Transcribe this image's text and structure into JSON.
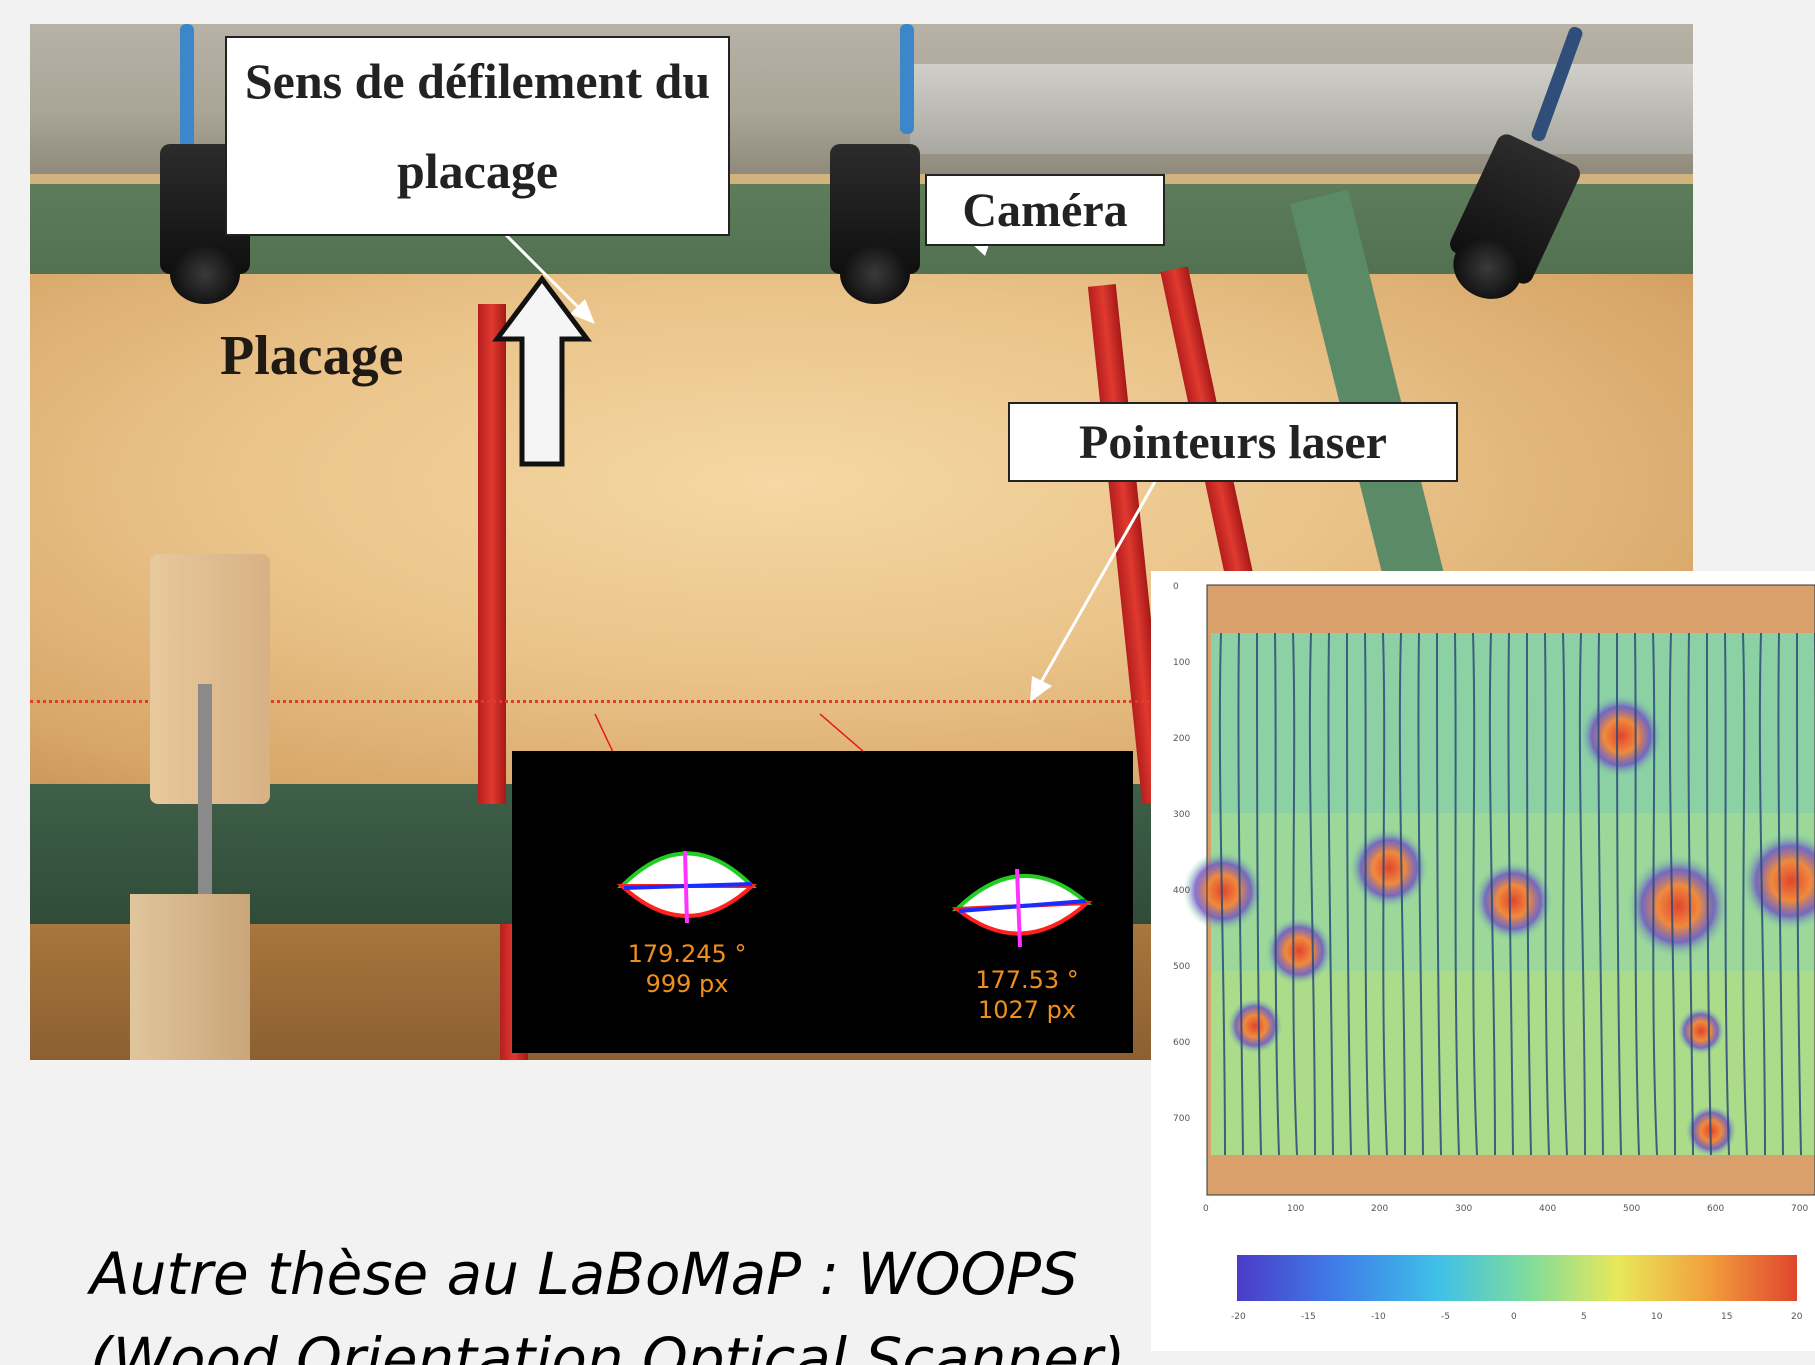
{
  "photo": {
    "label_sens_line1": "Sens de défilement du",
    "label_sens_line2": "placage",
    "label_camera": "Caméra",
    "label_laser": "Pointeurs laser",
    "label_placage": "Placage"
  },
  "inset": {
    "left_angle": "179.245 °",
    "left_px": "999 px",
    "right_angle": "177.53 °",
    "right_px": "1027 px",
    "colors": {
      "contour_top": "#22cc22",
      "contour_bottom": "#ff2020",
      "axis_major": "#1a2cff",
      "axis_minor": "#ff33ff",
      "text": "#f0901c"
    }
  },
  "heatmap": {
    "y_ticks": [
      "0",
      "100",
      "200",
      "300",
      "400",
      "500",
      "600",
      "700"
    ],
    "x_ticks": [
      "0",
      "100",
      "200",
      "300",
      "400",
      "500",
      "600",
      "700"
    ],
    "colorbar_ticks": [
      "-20",
      "-15",
      "-10",
      "-5",
      "0",
      "5",
      "10",
      "15",
      "20"
    ],
    "colormap": [
      "#4b3cc8",
      "#3f7ee8",
      "#3fc1e8",
      "#7fdc9c",
      "#e8e85a",
      "#f2a03c",
      "#e0452e"
    ]
  },
  "caption": {
    "line1": "Autre thèse au LaBoMaP : WOOPS",
    "line2": "(Wood Orientation Optical Scanner)"
  }
}
